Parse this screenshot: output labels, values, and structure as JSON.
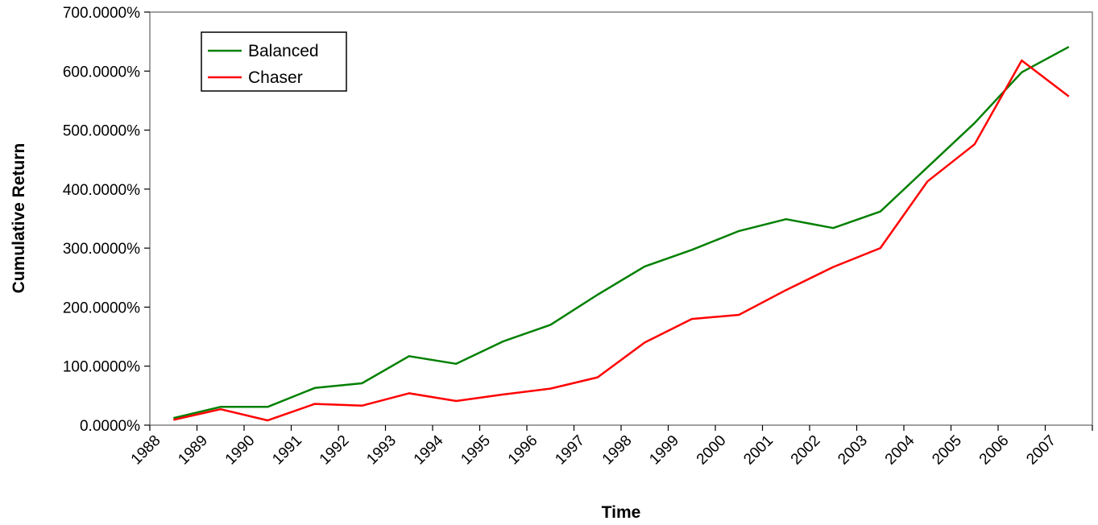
{
  "chart_data": {
    "type": "line",
    "title": "",
    "xlabel": "Time",
    "ylabel": "Cumulative Return",
    "categories": [
      "1988",
      "1989",
      "1990",
      "1991",
      "1992",
      "1993",
      "1994",
      "1995",
      "1996",
      "1997",
      "1998",
      "1999",
      "2000",
      "2001",
      "2002",
      "2003",
      "2004",
      "2005",
      "2006",
      "2007"
    ],
    "yticks": [
      "0.0000%",
      "100.0000%",
      "200.0000%",
      "300.0000%",
      "400.0000%",
      "500.0000%",
      "600.0000%",
      "700.0000%"
    ],
    "ylim": [
      0,
      700
    ],
    "grid": false,
    "legend": "top-left",
    "series": [
      {
        "name": "Balanced",
        "color": "#008000",
        "values": [
          12,
          31,
          31,
          63,
          71,
          117,
          104,
          142,
          170,
          221,
          269,
          297,
          329,
          349,
          334,
          362,
          437,
          512,
          598,
          641
        ]
      },
      {
        "name": "Chaser",
        "color": "#ff0000",
        "values": [
          9,
          27,
          8,
          36,
          33,
          54,
          41,
          52,
          62,
          81,
          140,
          180,
          187,
          229,
          268,
          300,
          413,
          476,
          618,
          557
        ]
      }
    ]
  }
}
